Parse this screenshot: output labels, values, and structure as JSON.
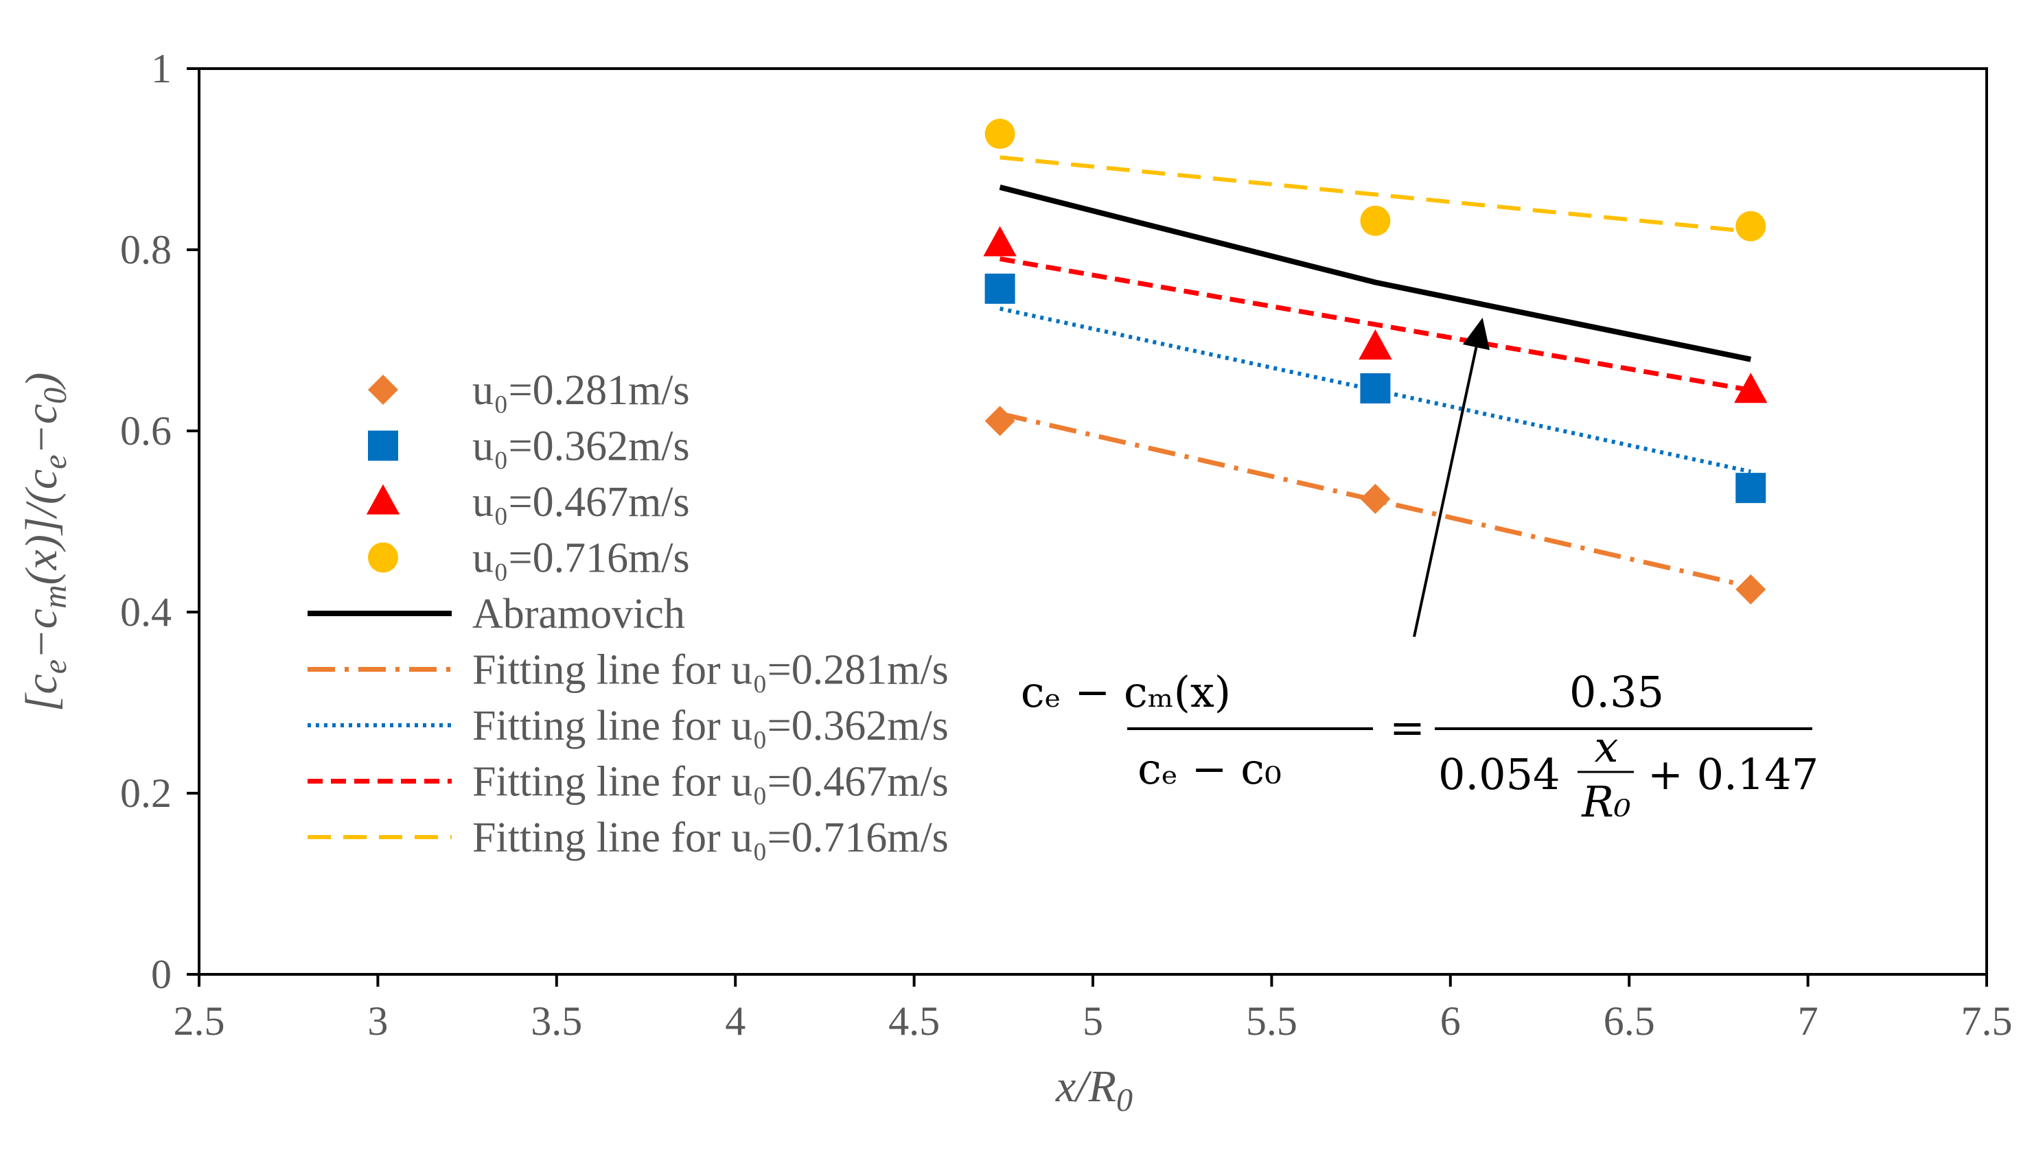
{
  "chart_data": {
    "type": "scatter",
    "xlabel": "x/R0",
    "ylabel": "[ce−cm(x)]/(ce−c0)",
    "xlim": [
      2.5,
      7.5
    ],
    "ylim": [
      0,
      1
    ],
    "x_ticks": [
      "2.5",
      "3",
      "3.5",
      "4",
      "4.5",
      "5",
      "5.5",
      "6",
      "6.5",
      "7",
      "7.5"
    ],
    "y_ticks": [
      "0",
      "0.2",
      "0.4",
      "0.6",
      "0.8",
      "1"
    ],
    "grid": false,
    "legend_position": "left",
    "series": [
      {
        "name": "u₀=0.281m/s",
        "kind": "marker",
        "marker": "diamond",
        "color": "#ED7D31",
        "x": [
          4.74,
          5.79,
          6.84
        ],
        "y": [
          0.611,
          0.525,
          0.425
        ]
      },
      {
        "name": "u₀=0.362m/s",
        "kind": "marker",
        "marker": "square",
        "color": "#0070C0",
        "x": [
          4.74,
          5.79,
          6.84
        ],
        "y": [
          0.757,
          0.647,
          0.537
        ]
      },
      {
        "name": "u₀=0.467m/s",
        "kind": "marker",
        "marker": "triangle",
        "color": "#FF0000",
        "x": [
          4.74,
          5.79,
          6.84
        ],
        "y": [
          0.807,
          0.693,
          0.645
        ]
      },
      {
        "name": "u₀=0.716m/s",
        "kind": "marker",
        "marker": "circle",
        "color": "#FFC000",
        "x": [
          4.74,
          5.79,
          6.84
        ],
        "y": [
          0.928,
          0.832,
          0.826
        ]
      },
      {
        "name": "Abramovich",
        "kind": "line",
        "dash": "solid",
        "color": "#000000",
        "x": [
          4.74,
          5.79,
          6.84
        ],
        "y": [
          0.869,
          0.764,
          0.679
        ]
      },
      {
        "name": "Fitting line for u₀=0.281m/s",
        "kind": "line",
        "dash": "dashdot",
        "color": "#ED7D31",
        "x": [
          4.74,
          6.84
        ],
        "y": [
          0.619,
          0.428
        ]
      },
      {
        "name": "Fitting line for u₀=0.362m/s",
        "kind": "line",
        "dash": "dotted",
        "color": "#0070C0",
        "x": [
          4.74,
          6.84
        ],
        "y": [
          0.735,
          0.555
        ]
      },
      {
        "name": "Fitting line for u₀=0.467m/s",
        "kind": "line",
        "dash": "dashed",
        "color": "#FF0000",
        "x": [
          4.74,
          6.84
        ],
        "y": [
          0.79,
          0.645
        ]
      },
      {
        "name": "Fitting line for u₀=0.716m/s",
        "kind": "line",
        "dash": "longdash",
        "color": "#FFC000",
        "x": [
          4.74,
          6.84
        ],
        "y": [
          0.902,
          0.82
        ]
      }
    ],
    "annotation": {
      "lhs_numerator": "cₑ − cₘ(x)",
      "lhs_denominator": "cₑ − c₀",
      "equals": "=",
      "rhs_numerator": "0.35",
      "rhs_prefix": "0.054",
      "rhs_frac_top": "x",
      "rhs_frac_bottom": "R₀",
      "rhs_suffix": "+ 0.147",
      "arrow_to": {
        "x": 6.09,
        "y": 0.725
      }
    }
  }
}
